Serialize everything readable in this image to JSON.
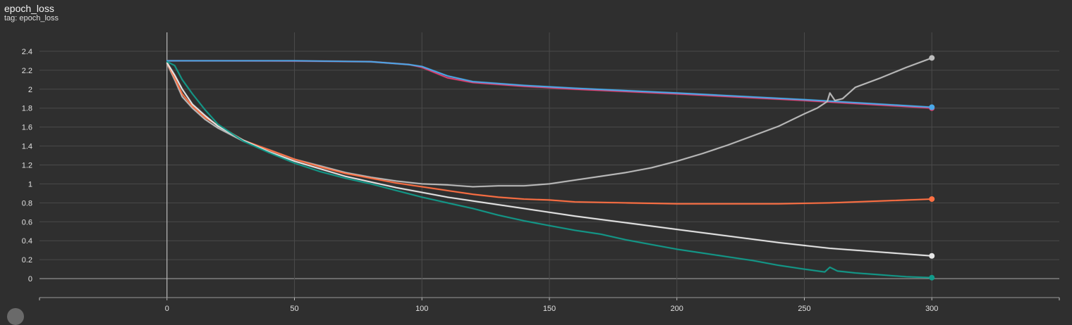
{
  "header": {
    "title": "epoch_loss",
    "subtitle": "tag: epoch_loss"
  },
  "colors": {
    "background": "#2f2f2f",
    "grid": "#4a4a4a",
    "text": "#e0e0e0"
  },
  "chart_data": {
    "type": "line",
    "title": "epoch_loss",
    "xlabel": "",
    "ylabel": "",
    "xlim": [
      -50,
      350
    ],
    "ylim": [
      -0.2,
      2.6
    ],
    "x_ticks": [
      0,
      50,
      100,
      150,
      200,
      250,
      300
    ],
    "y_ticks": [
      0,
      0.2,
      0.4,
      0.6,
      0.8,
      1,
      1.2,
      1.4,
      1.6,
      1.8,
      2,
      2.2,
      2.4
    ],
    "x_minor_ticks": [
      -50,
      350
    ],
    "grid": true,
    "legend": "none",
    "series": [
      {
        "color": "#e04070",
        "points": [
          [
            0,
            2.3
          ],
          [
            20,
            2.3
          ],
          [
            50,
            2.298
          ],
          [
            80,
            2.29
          ],
          [
            95,
            2.26
          ],
          [
            100,
            2.23
          ],
          [
            110,
            2.12
          ],
          [
            120,
            2.07
          ],
          [
            140,
            2.03
          ],
          [
            160,
            2.0
          ],
          [
            200,
            1.95
          ],
          [
            250,
            1.88
          ],
          [
            300,
            1.8
          ]
        ]
      },
      {
        "color": "#4aa8e8",
        "points": [
          [
            0,
            2.3
          ],
          [
            20,
            2.3
          ],
          [
            50,
            2.3
          ],
          [
            80,
            2.29
          ],
          [
            95,
            2.26
          ],
          [
            100,
            2.24
          ],
          [
            110,
            2.14
          ],
          [
            120,
            2.08
          ],
          [
            140,
            2.04
          ],
          [
            160,
            2.01
          ],
          [
            200,
            1.96
          ],
          [
            250,
            1.89
          ],
          [
            300,
            1.81
          ]
        ]
      },
      {
        "color": "#bdbdbd",
        "points": [
          [
            0,
            2.27
          ],
          [
            3,
            2.1
          ],
          [
            6,
            1.92
          ],
          [
            10,
            1.8
          ],
          [
            15,
            1.68
          ],
          [
            20,
            1.59
          ],
          [
            30,
            1.45
          ],
          [
            40,
            1.36
          ],
          [
            50,
            1.26
          ],
          [
            60,
            1.19
          ],
          [
            70,
            1.12
          ],
          [
            80,
            1.07
          ],
          [
            90,
            1.03
          ],
          [
            100,
            1.0
          ],
          [
            110,
            0.99
          ],
          [
            120,
            0.97
          ],
          [
            130,
            0.98
          ],
          [
            140,
            0.98
          ],
          [
            150,
            1.0
          ],
          [
            160,
            1.04
          ],
          [
            170,
            1.08
          ],
          [
            180,
            1.12
          ],
          [
            190,
            1.17
          ],
          [
            200,
            1.24
          ],
          [
            210,
            1.32
          ],
          [
            220,
            1.41
          ],
          [
            230,
            1.51
          ],
          [
            240,
            1.61
          ],
          [
            250,
            1.74
          ],
          [
            255,
            1.8
          ],
          [
            259,
            1.87
          ],
          [
            260,
            1.96
          ],
          [
            262,
            1.88
          ],
          [
            265,
            1.9
          ],
          [
            270,
            2.02
          ],
          [
            280,
            2.12
          ],
          [
            290,
            2.23
          ],
          [
            300,
            2.33
          ]
        ]
      },
      {
        "color": "#ff7043",
        "points": [
          [
            0,
            2.28
          ],
          [
            3,
            2.12
          ],
          [
            6,
            1.95
          ],
          [
            10,
            1.82
          ],
          [
            15,
            1.7
          ],
          [
            20,
            1.62
          ],
          [
            30,
            1.46
          ],
          [
            40,
            1.36
          ],
          [
            50,
            1.26
          ],
          [
            60,
            1.18
          ],
          [
            70,
            1.11
          ],
          [
            80,
            1.06
          ],
          [
            90,
            1.01
          ],
          [
            100,
            0.97
          ],
          [
            110,
            0.93
          ],
          [
            120,
            0.89
          ],
          [
            130,
            0.86
          ],
          [
            140,
            0.84
          ],
          [
            150,
            0.83
          ],
          [
            160,
            0.81
          ],
          [
            180,
            0.8
          ],
          [
            200,
            0.79
          ],
          [
            220,
            0.79
          ],
          [
            240,
            0.79
          ],
          [
            260,
            0.8
          ],
          [
            280,
            0.82
          ],
          [
            300,
            0.84
          ]
        ]
      },
      {
        "color": "#e6e6e6",
        "points": [
          [
            0,
            2.28
          ],
          [
            3,
            2.15
          ],
          [
            6,
            2.0
          ],
          [
            10,
            1.84
          ],
          [
            15,
            1.72
          ],
          [
            20,
            1.61
          ],
          [
            30,
            1.46
          ],
          [
            40,
            1.34
          ],
          [
            50,
            1.24
          ],
          [
            60,
            1.16
          ],
          [
            70,
            1.08
          ],
          [
            80,
            1.02
          ],
          [
            90,
            0.96
          ],
          [
            100,
            0.91
          ],
          [
            110,
            0.86
          ],
          [
            120,
            0.82
          ],
          [
            140,
            0.74
          ],
          [
            160,
            0.66
          ],
          [
            180,
            0.59
          ],
          [
            200,
            0.52
          ],
          [
            220,
            0.45
          ],
          [
            240,
            0.38
          ],
          [
            260,
            0.32
          ],
          [
            280,
            0.28
          ],
          [
            300,
            0.24
          ]
        ]
      },
      {
        "color": "#129a8a",
        "points": [
          [
            0,
            2.29
          ],
          [
            3,
            2.25
          ],
          [
            6,
            2.1
          ],
          [
            10,
            1.95
          ],
          [
            15,
            1.78
          ],
          [
            20,
            1.63
          ],
          [
            30,
            1.45
          ],
          [
            40,
            1.33
          ],
          [
            50,
            1.22
          ],
          [
            60,
            1.13
          ],
          [
            70,
            1.06
          ],
          [
            80,
            1.0
          ],
          [
            90,
            0.93
          ],
          [
            100,
            0.86
          ],
          [
            110,
            0.8
          ],
          [
            120,
            0.74
          ],
          [
            130,
            0.67
          ],
          [
            140,
            0.61
          ],
          [
            150,
            0.56
          ],
          [
            160,
            0.51
          ],
          [
            170,
            0.47
          ],
          [
            180,
            0.41
          ],
          [
            190,
            0.36
          ],
          [
            200,
            0.31
          ],
          [
            210,
            0.27
          ],
          [
            220,
            0.23
          ],
          [
            230,
            0.19
          ],
          [
            240,
            0.14
          ],
          [
            250,
            0.1
          ],
          [
            258,
            0.07
          ],
          [
            260,
            0.12
          ],
          [
            263,
            0.08
          ],
          [
            270,
            0.06
          ],
          [
            280,
            0.04
          ],
          [
            290,
            0.02
          ],
          [
            300,
            0.01
          ]
        ]
      }
    ]
  }
}
